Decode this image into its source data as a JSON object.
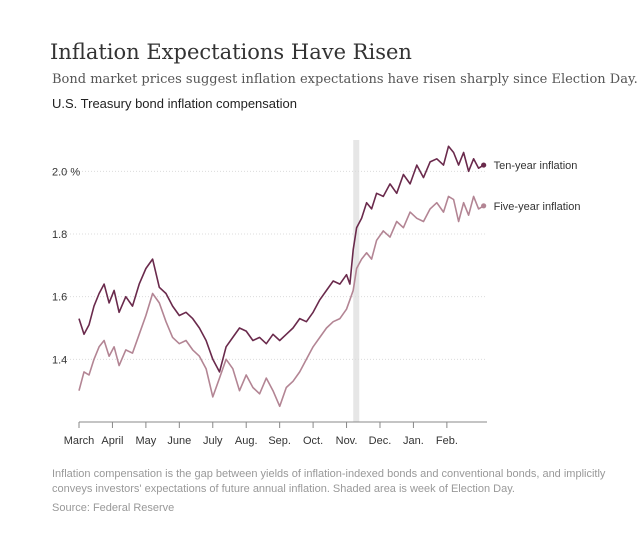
{
  "header": {
    "title": "Inflation Expectations Have Risen",
    "subtitle": "Bond market prices suggest inflation expectations have risen sharply since Election Day."
  },
  "chart_heading": "U.S. Treasury bond inflation compensation",
  "note": "Inflation compensation is the gap between yields of inflation-indexed bonds and conventional bonds, and implicitly conveys investors' expectations of future annual inflation. Shaded area is week of Election Day.",
  "source": "Source: Federal Reserve",
  "chart_data": {
    "type": "line",
    "title": "U.S. Treasury bond inflation compensation",
    "xlabel": "",
    "ylabel": "",
    "x_tick_labels": [
      "March",
      "April",
      "May",
      "June",
      "July",
      "Aug.",
      "Sep.",
      "Oct.",
      "Nov.",
      "Dec.",
      "Jan.",
      "Feb."
    ],
    "y_tick_labels": [
      "1.4",
      "1.6",
      "1.8",
      "2.0 %"
    ],
    "y_ticks": [
      1.4,
      1.6,
      1.8,
      2.0
    ],
    "ylim": [
      1.2,
      2.1
    ],
    "xlim": [
      0,
      12.2
    ],
    "grid": "horizontal",
    "legend": "inline labels at right end of lines",
    "shaded_region": {
      "x_start": 8.2,
      "x_end": 8.38,
      "color": "#e6e6e6"
    },
    "series": [
      {
        "name": "Ten-year inflation",
        "color": "#6a2a4c",
        "x": [
          0,
          0.15,
          0.3,
          0.45,
          0.6,
          0.75,
          0.9,
          1.05,
          1.2,
          1.4,
          1.6,
          1.8,
          2.0,
          2.2,
          2.4,
          2.6,
          2.8,
          3.0,
          3.2,
          3.4,
          3.6,
          3.8,
          4.0,
          4.2,
          4.4,
          4.6,
          4.8,
          5.0,
          5.2,
          5.4,
          5.6,
          5.8,
          6.0,
          6.2,
          6.4,
          6.6,
          6.8,
          7.0,
          7.2,
          7.4,
          7.6,
          7.8,
          8.0,
          8.1,
          8.2,
          8.3,
          8.45,
          8.6,
          8.75,
          8.9,
          9.1,
          9.3,
          9.5,
          9.7,
          9.9,
          10.1,
          10.3,
          10.5,
          10.7,
          10.9,
          11.05,
          11.2,
          11.35,
          11.5,
          11.65,
          11.8,
          11.95,
          12.1
        ],
        "values": [
          1.53,
          1.48,
          1.51,
          1.57,
          1.61,
          1.64,
          1.58,
          1.62,
          1.55,
          1.6,
          1.57,
          1.64,
          1.69,
          1.72,
          1.63,
          1.61,
          1.57,
          1.54,
          1.55,
          1.53,
          1.5,
          1.46,
          1.4,
          1.36,
          1.44,
          1.47,
          1.5,
          1.49,
          1.46,
          1.47,
          1.45,
          1.48,
          1.46,
          1.48,
          1.5,
          1.53,
          1.52,
          1.55,
          1.59,
          1.62,
          1.65,
          1.64,
          1.67,
          1.64,
          1.75,
          1.82,
          1.85,
          1.9,
          1.88,
          1.93,
          1.92,
          1.96,
          1.93,
          1.99,
          1.96,
          2.02,
          1.98,
          2.03,
          2.04,
          2.02,
          2.08,
          2.06,
          2.02,
          2.06,
          2.0,
          2.04,
          2.01,
          2.02
        ]
      },
      {
        "name": "Five-year inflation",
        "color": "#b38594",
        "x": [
          0,
          0.15,
          0.3,
          0.45,
          0.6,
          0.75,
          0.9,
          1.05,
          1.2,
          1.4,
          1.6,
          1.8,
          2.0,
          2.2,
          2.4,
          2.6,
          2.8,
          3.0,
          3.2,
          3.4,
          3.6,
          3.8,
          4.0,
          4.2,
          4.4,
          4.6,
          4.8,
          5.0,
          5.2,
          5.4,
          5.6,
          5.8,
          6.0,
          6.2,
          6.4,
          6.6,
          6.8,
          7.0,
          7.2,
          7.4,
          7.6,
          7.8,
          8.0,
          8.1,
          8.2,
          8.3,
          8.45,
          8.6,
          8.75,
          8.9,
          9.1,
          9.3,
          9.5,
          9.7,
          9.9,
          10.1,
          10.3,
          10.5,
          10.7,
          10.9,
          11.05,
          11.2,
          11.35,
          11.5,
          11.65,
          11.8,
          11.95,
          12.1
        ],
        "values": [
          1.3,
          1.36,
          1.35,
          1.4,
          1.44,
          1.46,
          1.41,
          1.44,
          1.38,
          1.43,
          1.42,
          1.48,
          1.54,
          1.61,
          1.58,
          1.52,
          1.47,
          1.45,
          1.46,
          1.43,
          1.41,
          1.37,
          1.28,
          1.34,
          1.4,
          1.37,
          1.3,
          1.35,
          1.31,
          1.29,
          1.34,
          1.3,
          1.25,
          1.31,
          1.33,
          1.36,
          1.4,
          1.44,
          1.47,
          1.5,
          1.52,
          1.53,
          1.56,
          1.59,
          1.62,
          1.69,
          1.72,
          1.74,
          1.72,
          1.78,
          1.81,
          1.79,
          1.84,
          1.82,
          1.87,
          1.85,
          1.84,
          1.88,
          1.9,
          1.87,
          1.92,
          1.91,
          1.84,
          1.9,
          1.86,
          1.92,
          1.88,
          1.89
        ]
      }
    ]
  }
}
